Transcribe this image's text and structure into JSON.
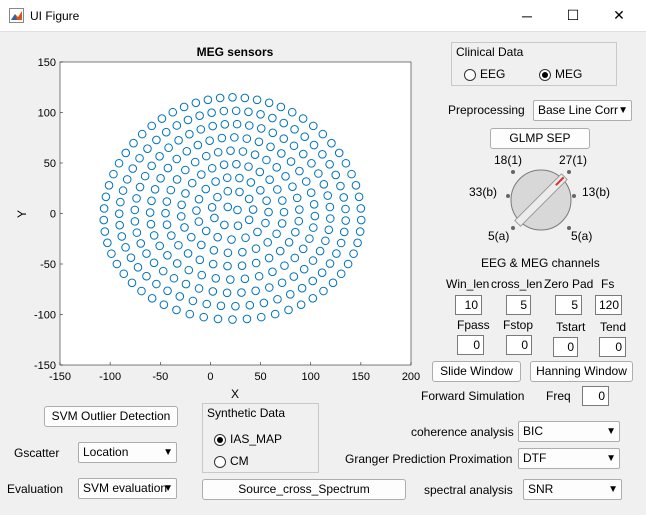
{
  "window": {
    "title": "UI Figure",
    "minimize": "─",
    "maximize": "☐",
    "close": "✕"
  },
  "chart_data": {
    "type": "scatter",
    "title": "MEG sensors",
    "xlabel": "X",
    "ylabel": "Y",
    "xlim": [
      -150,
      200
    ],
    "ylim": [
      -150,
      150
    ],
    "xticks": [
      -150,
      -100,
      -50,
      0,
      50,
      100,
      150,
      200
    ],
    "yticks": [
      -150,
      -100,
      -50,
      0,
      50,
      100,
      150
    ],
    "grid": false,
    "color": "#0072bd",
    "marker": "circle-open",
    "layout": "approximately 250 sensors arranged in an elliptical cap shape centered near (20, 5)"
  },
  "clinical": {
    "title": "Clinical Data",
    "eeg": "EEG",
    "meg": "MEG",
    "selected": "MEG"
  },
  "preprocessing": {
    "label": "Preprocessing",
    "value": "Base Line Corr"
  },
  "glmp_button": "GLMP SEP",
  "knob": {
    "labels": [
      "18(1)",
      "27(1)",
      "33(b)",
      "13(b)",
      "5(a)",
      "5(a)"
    ]
  },
  "channels_title": "EEG & MEG channels",
  "params": {
    "win_len": {
      "label": "Win_len",
      "value": "10"
    },
    "cross_len": {
      "label": "cross_len",
      "value": "5"
    },
    "zero_pad": {
      "label": "Zero Pad",
      "value": "5"
    },
    "fs": {
      "label": "Fs",
      "value": "120"
    },
    "fpass": {
      "label": "Fpass",
      "value": "0"
    },
    "fstop": {
      "label": "Fstop",
      "value": "0"
    },
    "tstart": {
      "label": "Tstart",
      "value": "0"
    },
    "tend": {
      "label": "Tend",
      "value": "0"
    }
  },
  "slide_window": "Slide Window",
  "hanning_window": "Hanning Window",
  "forward_sim": "Forward Simulation",
  "freq": {
    "label": "Freq",
    "value": "0"
  },
  "svm_outlier": "SVM Outlier Detection",
  "synthetic": {
    "title": "Synthetic Data",
    "ias": "IAS_MAP",
    "cm": "CM",
    "selected": "IAS_MAP"
  },
  "coherence": {
    "label": "coherence analysis",
    "value": "BIC"
  },
  "granger": {
    "label": "Granger Prediction Proximation",
    "value": "DTF"
  },
  "spectral": {
    "label": "spectral analysis",
    "value": "SNR"
  },
  "gscatter": {
    "label": "Gscatter",
    "value": "Location"
  },
  "evaluation": {
    "label": "Evaluation",
    "value": "SVM evaluation"
  },
  "source_cross": "Source_cross_Spectrum"
}
